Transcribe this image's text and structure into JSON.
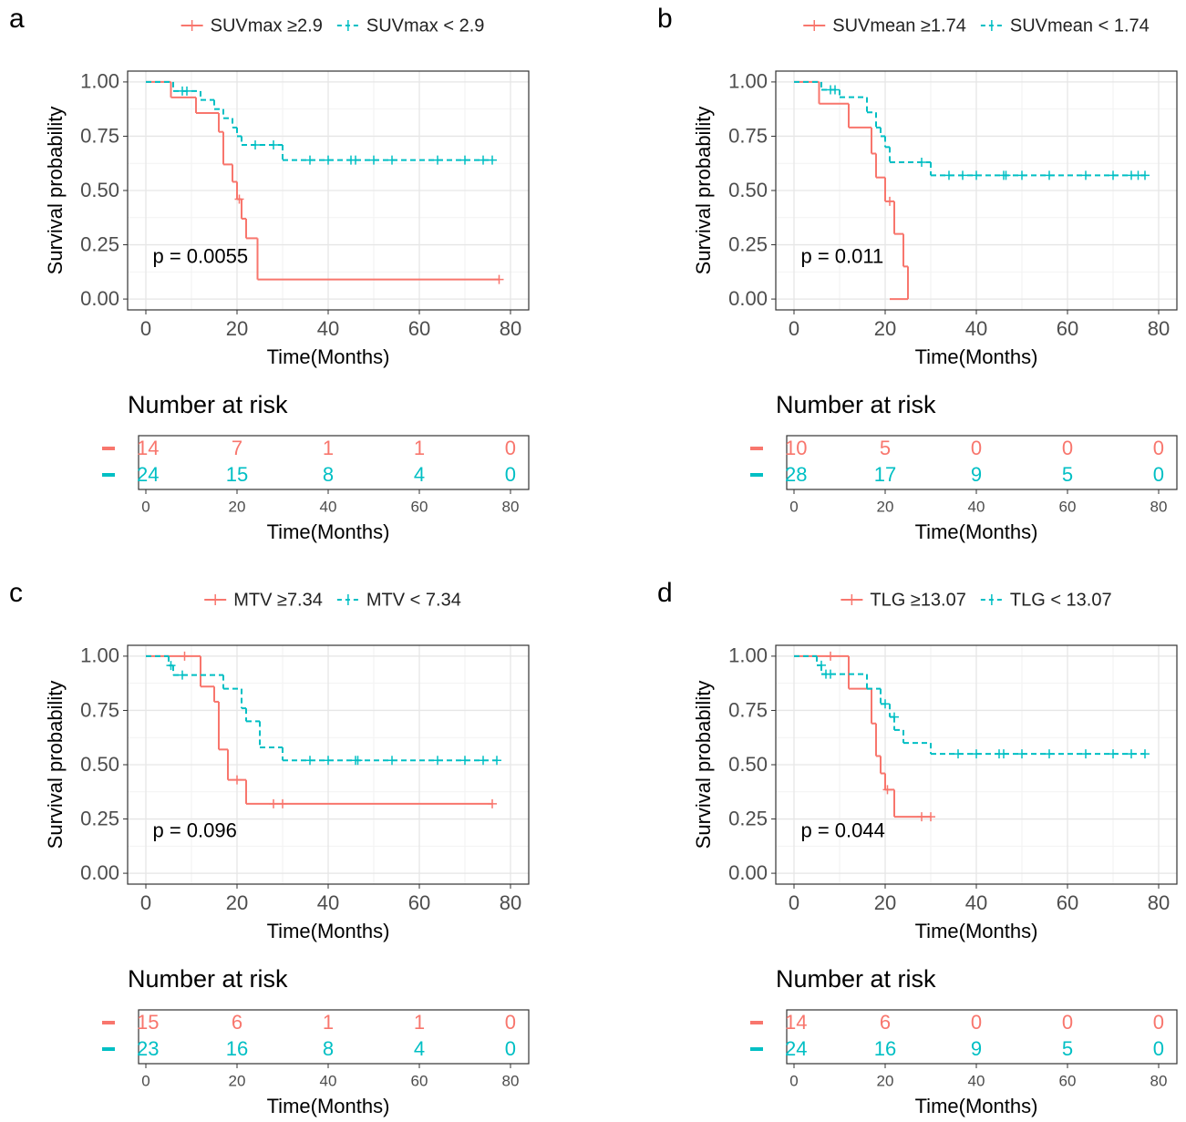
{
  "chart_data": [
    {
      "type": "step",
      "panel_label": "a",
      "xlabel": "Time(Months)",
      "ylabel": "Survival probability",
      "annotation": "p = 0.0055",
      "xlim": [
        -4,
        84
      ],
      "ylim": [
        -0.05,
        1.05
      ],
      "xticks": [
        0,
        20,
        40,
        60,
        80
      ],
      "yticks": [
        {
          "value": 0,
          "label": "0.00"
        },
        {
          "value": 0.25,
          "label": "0.25"
        },
        {
          "value": 0.5,
          "label": "0.50"
        },
        {
          "value": 0.75,
          "label": "0.75"
        },
        {
          "value": 1,
          "label": "1.00"
        }
      ],
      "grid": true,
      "legend_position": "top",
      "risk_table_title": "Number at risk",
      "series": [
        {
          "name": "SUVmax ≥2.9",
          "color": "#F8766D",
          "dashed": false,
          "x": [
            0,
            5.5,
            11,
            16,
            17,
            19,
            20,
            21,
            22,
            24.5
          ],
          "values": [
            1,
            0.929,
            0.857,
            0.77,
            0.62,
            0.54,
            0.46,
            0.37,
            0.28,
            0.09
          ],
          "censor_x": [
            20.5,
            77.5
          ],
          "censor_values": [
            0.46,
            0.09
          ],
          "at_risk": [
            14,
            7,
            1,
            1,
            0
          ]
        },
        {
          "name": "SUVmax < 2.9",
          "color": "#00BFC4",
          "dashed": true,
          "x": [
            0,
            6,
            12,
            15,
            17,
            19,
            20,
            21,
            30
          ],
          "values": [
            1,
            0.958,
            0.917,
            0.875,
            0.833,
            0.79,
            0.75,
            0.71,
            0.64
          ],
          "censor_x": [
            8,
            9,
            24,
            28,
            36,
            40,
            45,
            46,
            50,
            54,
            64,
            70,
            74,
            76
          ],
          "censor_values": [
            0.958,
            0.958,
            0.71,
            0.71,
            0.64,
            0.64,
            0.64,
            0.64,
            0.64,
            0.64,
            0.64,
            0.64,
            0.64,
            0.64
          ],
          "at_risk": [
            24,
            15,
            8,
            4,
            0
          ]
        }
      ]
    },
    {
      "type": "step",
      "panel_label": "b",
      "xlabel": "Time(Months)",
      "ylabel": "Survival probability",
      "annotation": "p = 0.011",
      "xlim": [
        -4,
        84
      ],
      "ylim": [
        -0.05,
        1.05
      ],
      "xticks": [
        0,
        20,
        40,
        60,
        80
      ],
      "yticks": [
        {
          "value": 0,
          "label": "0.00"
        },
        {
          "value": 0.25,
          "label": "0.25"
        },
        {
          "value": 0.5,
          "label": "0.50"
        },
        {
          "value": 0.75,
          "label": "0.75"
        },
        {
          "value": 1,
          "label": "1.00"
        }
      ],
      "grid": true,
      "legend_position": "top",
      "risk_table_title": "Number at risk",
      "series": [
        {
          "name": "SUVmean ≥1.74",
          "color": "#F8766D",
          "dashed": false,
          "x": [
            0,
            5.5,
            12,
            17,
            18,
            20,
            22,
            24,
            25
          ],
          "values": [
            1,
            0.9,
            0.79,
            0.67,
            0.56,
            0.45,
            0.3,
            0.15,
            0
          ],
          "censor_x": [
            21
          ],
          "censor_values": [
            0.45
          ],
          "at_risk": [
            10,
            5,
            0,
            0,
            0
          ]
        },
        {
          "name": "SUVmean < 1.74",
          "color": "#00BFC4",
          "dashed": true,
          "x": [
            0,
            6,
            10,
            16,
            18,
            19,
            20,
            21,
            30
          ],
          "values": [
            1,
            0.964,
            0.93,
            0.86,
            0.79,
            0.75,
            0.7,
            0.63,
            0.57
          ],
          "censor_x": [
            8,
            9,
            28,
            34,
            37,
            40,
            46,
            46.5,
            50,
            56,
            64,
            70,
            74,
            75.5,
            77
          ],
          "censor_values": [
            0.964,
            0.964,
            0.63,
            0.57,
            0.57,
            0.57,
            0.57,
            0.57,
            0.57,
            0.57,
            0.57,
            0.57,
            0.57,
            0.57,
            0.57
          ],
          "at_risk": [
            28,
            17,
            9,
            5,
            0
          ]
        }
      ]
    },
    {
      "type": "step",
      "panel_label": "c",
      "xlabel": "Time(Months)",
      "ylabel": "Survival probability",
      "annotation": "p = 0.096",
      "xlim": [
        -4,
        84
      ],
      "ylim": [
        -0.05,
        1.05
      ],
      "xticks": [
        0,
        20,
        40,
        60,
        80
      ],
      "yticks": [
        {
          "value": 0,
          "label": "0.00"
        },
        {
          "value": 0.25,
          "label": "0.25"
        },
        {
          "value": 0.5,
          "label": "0.50"
        },
        {
          "value": 0.75,
          "label": "0.75"
        },
        {
          "value": 1,
          "label": "1.00"
        }
      ],
      "grid": true,
      "legend_position": "top",
      "risk_table_title": "Number at risk",
      "series": [
        {
          "name": "MTV ≥7.34",
          "color": "#F8766D",
          "dashed": false,
          "x": [
            0,
            12,
            15,
            16,
            18,
            22
          ],
          "values": [
            1,
            0.86,
            0.79,
            0.57,
            0.43,
            0.32
          ],
          "censor_x": [
            8.5,
            20,
            28,
            30,
            76
          ],
          "censor_values": [
            1,
            0.43,
            0.32,
            0.32,
            0.32
          ],
          "at_risk": [
            15,
            6,
            1,
            1,
            0
          ]
        },
        {
          "name": "MTV < 7.34",
          "color": "#00BFC4",
          "dashed": true,
          "x": [
            0,
            5,
            6,
            17,
            21,
            22,
            25,
            30
          ],
          "values": [
            1,
            0.957,
            0.913,
            0.85,
            0.76,
            0.7,
            0.58,
            0.52
          ],
          "censor_x": [
            5.5,
            8,
            36,
            40,
            46,
            46.5,
            54,
            64,
            70,
            74,
            77
          ],
          "censor_values": [
            0.957,
            0.913,
            0.52,
            0.52,
            0.52,
            0.52,
            0.52,
            0.52,
            0.52,
            0.52,
            0.52
          ],
          "at_risk": [
            23,
            16,
            8,
            4,
            0
          ]
        }
      ]
    },
    {
      "type": "step",
      "panel_label": "d",
      "xlabel": "Time(Months)",
      "ylabel": "Survival probability",
      "annotation": "p = 0.044",
      "xlim": [
        -4,
        84
      ],
      "ylim": [
        -0.05,
        1.05
      ],
      "xticks": [
        0,
        20,
        40,
        60,
        80
      ],
      "yticks": [
        {
          "value": 0,
          "label": "0.00"
        },
        {
          "value": 0.25,
          "label": "0.25"
        },
        {
          "value": 0.5,
          "label": "0.50"
        },
        {
          "value": 0.75,
          "label": "0.75"
        },
        {
          "value": 1,
          "label": "1.00"
        }
      ],
      "grid": true,
      "legend_position": "top",
      "risk_table_title": "Number at risk",
      "series": [
        {
          "name": "TLG ≥13.07",
          "color": "#F8766D",
          "dashed": false,
          "x": [
            0,
            12,
            17,
            18,
            19,
            20,
            22
          ],
          "values": [
            1,
            0.85,
            0.69,
            0.54,
            0.46,
            0.385,
            0.26
          ],
          "censor_x": [
            8,
            20.5,
            28,
            30
          ],
          "censor_values": [
            1,
            0.385,
            0.26,
            0.26
          ],
          "at_risk": [
            14,
            6,
            0,
            0,
            0
          ]
        },
        {
          "name": "TLG < 13.07",
          "color": "#00BFC4",
          "dashed": true,
          "x": [
            0,
            5,
            6,
            16,
            19,
            21,
            22,
            24,
            30
          ],
          "values": [
            1,
            0.958,
            0.917,
            0.85,
            0.78,
            0.72,
            0.66,
            0.6,
            0.55
          ],
          "censor_x": [
            6,
            7,
            8,
            20,
            22,
            36,
            40,
            45,
            46,
            50,
            56,
            64,
            70,
            74,
            77
          ],
          "censor_values": [
            0.958,
            0.917,
            0.917,
            0.78,
            0.72,
            0.55,
            0.55,
            0.55,
            0.55,
            0.55,
            0.55,
            0.55,
            0.55,
            0.55,
            0.55
          ],
          "at_risk": [
            24,
            16,
            9,
            5,
            0
          ]
        }
      ]
    }
  ]
}
